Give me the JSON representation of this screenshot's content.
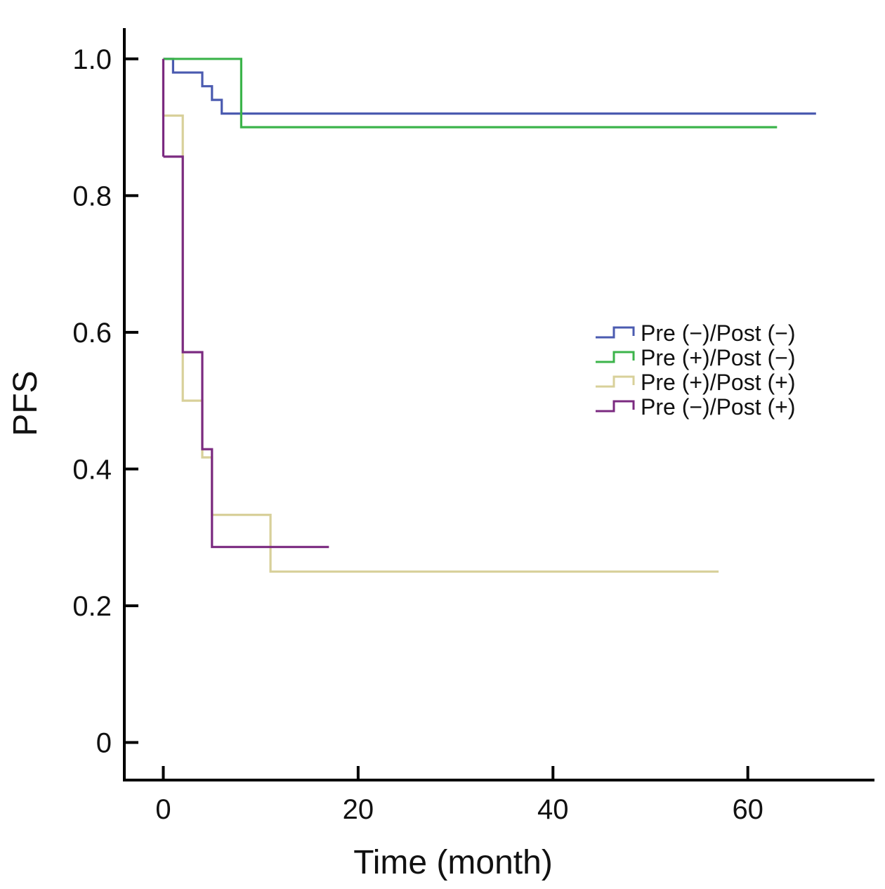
{
  "chart_data": {
    "type": "line",
    "subtype": "kaplan-meier step",
    "xlabel": "Time (month)",
    "ylabel": "PFS",
    "xlim": [
      -4,
      73
    ],
    "ylim": [
      -0.055,
      1.045
    ],
    "xticks": [
      0,
      20,
      40,
      60
    ],
    "xtick_labels": [
      "0",
      "20",
      "40",
      "60"
    ],
    "yticks": [
      0,
      0.2,
      0.4,
      0.6,
      0.8,
      1.0
    ],
    "ytick_labels": [
      "0",
      "0.2",
      "0.4",
      "0.6",
      "0.8",
      "1.0"
    ],
    "grid": false,
    "legend_position": "center-right",
    "series": [
      {
        "name": "Pre (−)/Post (−)",
        "color": "#4b5bb0",
        "x": [
          0,
          1,
          4,
          5,
          6,
          67
        ],
        "y": [
          1.0,
          0.98,
          0.96,
          0.94,
          0.92,
          0.92
        ]
      },
      {
        "name": "Pre (+)/Post (−)",
        "color": "#3cb44b",
        "x": [
          0,
          8,
          63
        ],
        "y": [
          1.0,
          0.9,
          0.9
        ]
      },
      {
        "name": "Pre (+)/Post (+)",
        "color": "#d8d09a",
        "x": [
          0,
          2,
          4,
          5,
          11,
          57
        ],
        "y": [
          0.917,
          0.5,
          0.417,
          0.333,
          0.25,
          0.25
        ]
      },
      {
        "name": "Pre (−)/Post (+)",
        "color": "#7b2a80",
        "x": [
          0,
          2,
          4,
          5,
          17
        ],
        "y": [
          0.857,
          0.571,
          0.429,
          0.286,
          0.286
        ]
      }
    ]
  }
}
